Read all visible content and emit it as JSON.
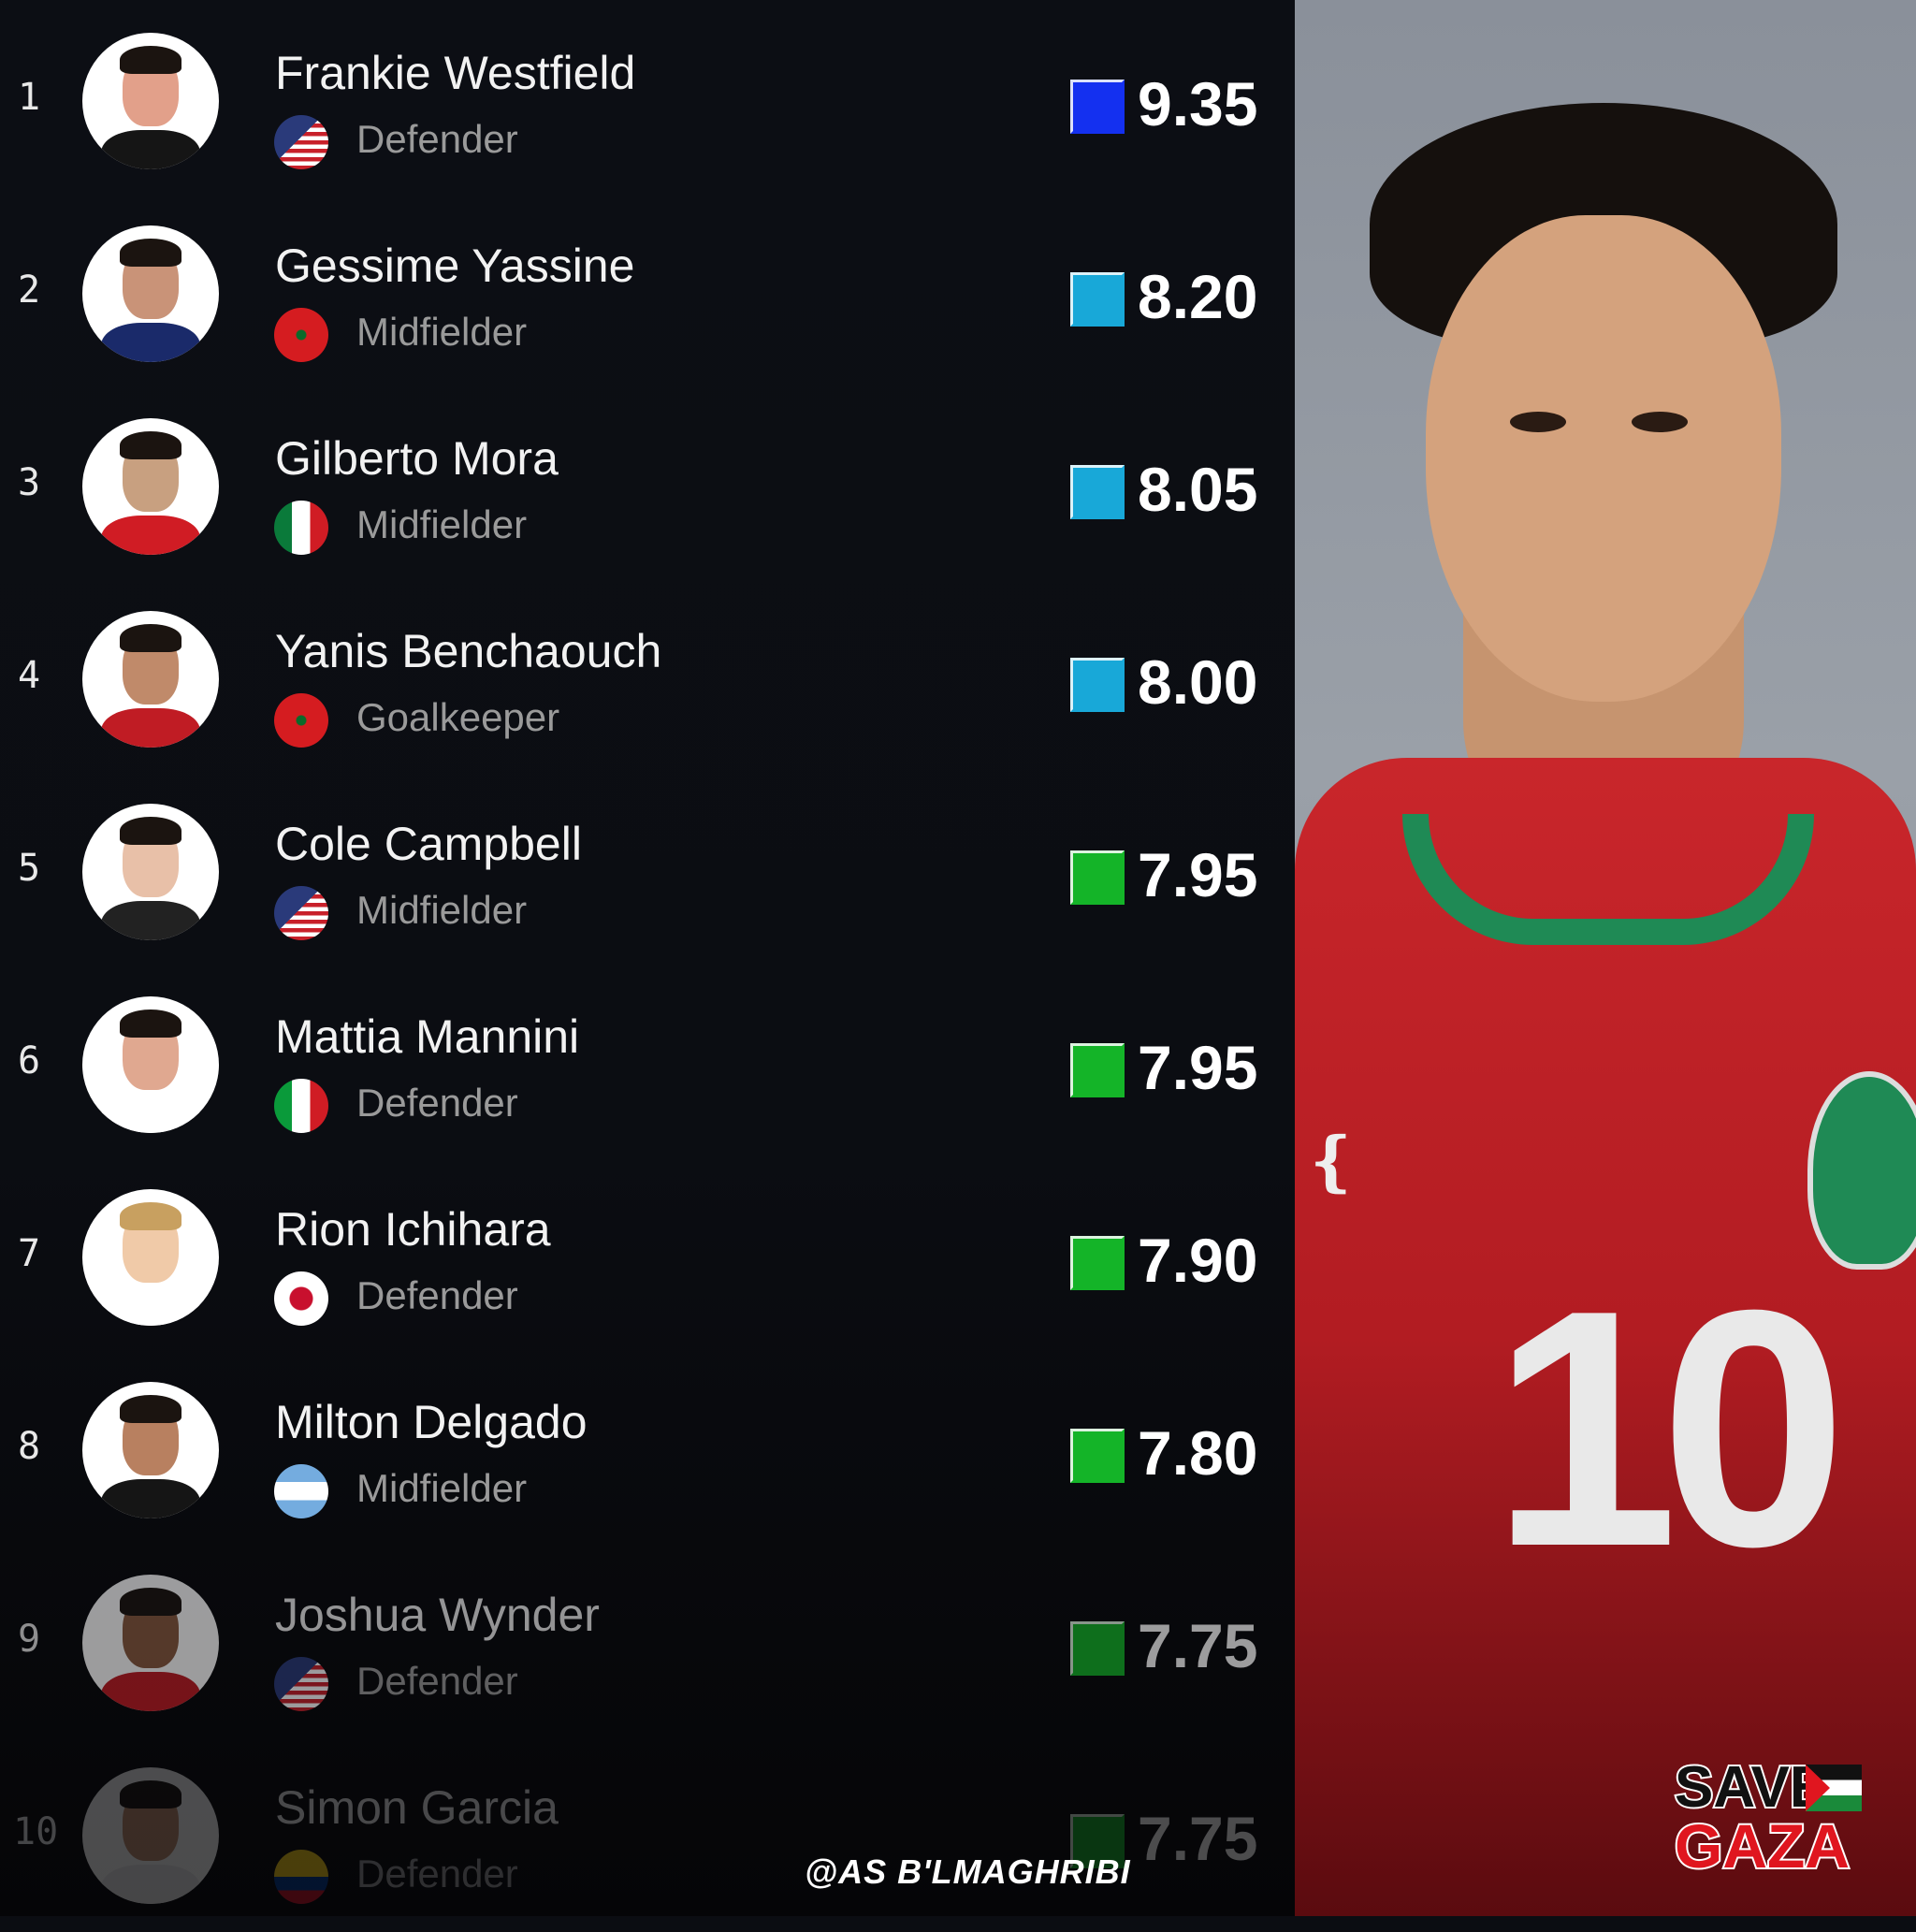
{
  "players": [
    {
      "rank": "1",
      "name": "Frankie Westfield",
      "flag": "usa",
      "position": "Defender",
      "rating": "9.35",
      "badge_color": "#1430f0"
    },
    {
      "rank": "2",
      "name": "Gessime Yassine",
      "flag": "morocco",
      "position": "Midfielder",
      "rating": "8.20",
      "badge_color": "#18a8d8"
    },
    {
      "rank": "3",
      "name": "Gilberto Mora",
      "flag": "mexico",
      "position": "Midfielder",
      "rating": "8.05",
      "badge_color": "#18a8d8"
    },
    {
      "rank": "4",
      "name": "Yanis Benchaouch",
      "flag": "morocco",
      "position": "Goalkeeper",
      "rating": "8.00",
      "badge_color": "#18a8d8"
    },
    {
      "rank": "5",
      "name": "Cole Campbell",
      "flag": "usa",
      "position": "Midfielder",
      "rating": "7.95",
      "badge_color": "#14b428"
    },
    {
      "rank": "6",
      "name": "Mattia Mannini",
      "flag": "italy",
      "position": "Defender",
      "rating": "7.95",
      "badge_color": "#14b428"
    },
    {
      "rank": "7",
      "name": "Rion Ichihara",
      "flag": "japan",
      "position": "Defender",
      "rating": "7.90",
      "badge_color": "#14b428"
    },
    {
      "rank": "8",
      "name": "Milton Delgado",
      "flag": "argentina",
      "position": "Midfielder",
      "rating": "7.80",
      "badge_color": "#14b428"
    },
    {
      "rank": "9",
      "name": "Joshua Wynder",
      "flag": "usa",
      "position": "Defender",
      "rating": "7.75",
      "badge_color": "#14b428"
    },
    {
      "rank": "10",
      "name": "Simon Garcia",
      "flag": "colombia",
      "position": "Defender",
      "rating": "7.75",
      "badge_color": "#14b428"
    }
  ],
  "photo": {
    "jersey_number": "10"
  },
  "watermark": "@AS B'LMAGHRIBI",
  "logo": {
    "line1": "SAVE",
    "line2": "GAZA"
  }
}
